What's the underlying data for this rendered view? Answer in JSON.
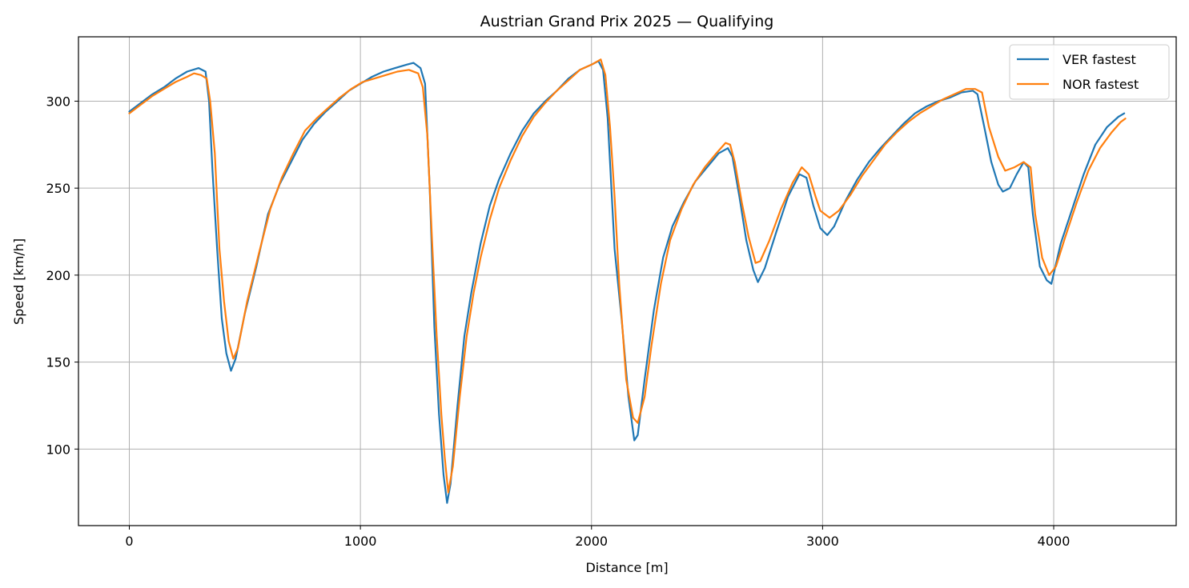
{
  "chart_data": {
    "type": "line",
    "title": "Austrian Grand Prix 2025 — Qualifying",
    "xlabel": "Distance [m]",
    "ylabel": "Speed [km/h]",
    "xlim": [
      -220,
      4530
    ],
    "ylim": [
      56,
      337
    ],
    "xticks": [
      0,
      1000,
      2000,
      3000,
      4000
    ],
    "yticks": [
      100,
      150,
      200,
      250,
      300
    ],
    "grid": true,
    "legend_position": "top-right",
    "series": [
      {
        "name": "VER fastest",
        "color": "#1f77b4",
        "points": [
          [
            0,
            294
          ],
          [
            50,
            299
          ],
          [
            100,
            304
          ],
          [
            150,
            308
          ],
          [
            200,
            313
          ],
          [
            250,
            317
          ],
          [
            300,
            319
          ],
          [
            330,
            317
          ],
          [
            345,
            300
          ],
          [
            360,
            260
          ],
          [
            380,
            215
          ],
          [
            400,
            175
          ],
          [
            420,
            155
          ],
          [
            440,
            145
          ],
          [
            460,
            152
          ],
          [
            500,
            178
          ],
          [
            550,
            205
          ],
          [
            600,
            235
          ],
          [
            650,
            252
          ],
          [
            700,
            265
          ],
          [
            750,
            278
          ],
          [
            800,
            287
          ],
          [
            850,
            294
          ],
          [
            900,
            300
          ],
          [
            950,
            306
          ],
          [
            1000,
            310
          ],
          [
            1050,
            314
          ],
          [
            1100,
            317
          ],
          [
            1150,
            319
          ],
          [
            1200,
            321
          ],
          [
            1230,
            322
          ],
          [
            1260,
            319
          ],
          [
            1280,
            310
          ],
          [
            1300,
            250
          ],
          [
            1320,
            170
          ],
          [
            1340,
            120
          ],
          [
            1360,
            85
          ],
          [
            1375,
            69
          ],
          [
            1390,
            80
          ],
          [
            1420,
            125
          ],
          [
            1450,
            165
          ],
          [
            1480,
            190
          ],
          [
            1520,
            218
          ],
          [
            1560,
            240
          ],
          [
            1600,
            255
          ],
          [
            1650,
            270
          ],
          [
            1700,
            283
          ],
          [
            1750,
            293
          ],
          [
            1800,
            300
          ],
          [
            1850,
            306
          ],
          [
            1900,
            313
          ],
          [
            1950,
            318
          ],
          [
            2000,
            321
          ],
          [
            2030,
            323
          ],
          [
            2050,
            318
          ],
          [
            2070,
            290
          ],
          [
            2100,
            215
          ],
          [
            2130,
            175
          ],
          [
            2160,
            130
          ],
          [
            2185,
            105
          ],
          [
            2200,
            108
          ],
          [
            2230,
            140
          ],
          [
            2270,
            180
          ],
          [
            2310,
            210
          ],
          [
            2350,
            228
          ],
          [
            2400,
            242
          ],
          [
            2450,
            254
          ],
          [
            2500,
            262
          ],
          [
            2550,
            270
          ],
          [
            2590,
            273
          ],
          [
            2610,
            268
          ],
          [
            2640,
            245
          ],
          [
            2670,
            220
          ],
          [
            2700,
            203
          ],
          [
            2720,
            196
          ],
          [
            2750,
            204
          ],
          [
            2800,
            225
          ],
          [
            2850,
            245
          ],
          [
            2900,
            258
          ],
          [
            2930,
            256
          ],
          [
            2960,
            240
          ],
          [
            2990,
            227
          ],
          [
            3020,
            223
          ],
          [
            3050,
            228
          ],
          [
            3100,
            243
          ],
          [
            3150,
            255
          ],
          [
            3200,
            265
          ],
          [
            3250,
            273
          ],
          [
            3300,
            280
          ],
          [
            3350,
            287
          ],
          [
            3400,
            293
          ],
          [
            3450,
            297
          ],
          [
            3500,
            300
          ],
          [
            3550,
            302
          ],
          [
            3600,
            305
          ],
          [
            3650,
            306
          ],
          [
            3670,
            304
          ],
          [
            3700,
            285
          ],
          [
            3730,
            265
          ],
          [
            3760,
            252
          ],
          [
            3780,
            248
          ],
          [
            3810,
            250
          ],
          [
            3840,
            258
          ],
          [
            3870,
            265
          ],
          [
            3890,
            262
          ],
          [
            3910,
            235
          ],
          [
            3940,
            205
          ],
          [
            3970,
            197
          ],
          [
            3990,
            195
          ],
          [
            4030,
            218
          ],
          [
            4080,
            238
          ],
          [
            4130,
            258
          ],
          [
            4180,
            275
          ],
          [
            4230,
            285
          ],
          [
            4280,
            291
          ],
          [
            4305,
            293
          ]
        ]
      },
      {
        "name": "NOR fastest",
        "color": "#ff7f0e",
        "points": [
          [
            0,
            293
          ],
          [
            50,
            298
          ],
          [
            100,
            303
          ],
          [
            150,
            307
          ],
          [
            200,
            311
          ],
          [
            250,
            314
          ],
          [
            280,
            316
          ],
          [
            310,
            315
          ],
          [
            335,
            313
          ],
          [
            350,
            300
          ],
          [
            370,
            270
          ],
          [
            390,
            215
          ],
          [
            410,
            185
          ],
          [
            430,
            162
          ],
          [
            450,
            152
          ],
          [
            470,
            158
          ],
          [
            510,
            185
          ],
          [
            560,
            212
          ],
          [
            610,
            238
          ],
          [
            660,
            256
          ],
          [
            710,
            270
          ],
          [
            760,
            283
          ],
          [
            810,
            290
          ],
          [
            860,
            296
          ],
          [
            910,
            302
          ],
          [
            960,
            307
          ],
          [
            1010,
            311
          ],
          [
            1060,
            313
          ],
          [
            1110,
            315
          ],
          [
            1160,
            317
          ],
          [
            1210,
            318
          ],
          [
            1250,
            316
          ],
          [
            1270,
            308
          ],
          [
            1290,
            280
          ],
          [
            1310,
            220
          ],
          [
            1330,
            165
          ],
          [
            1350,
            120
          ],
          [
            1365,
            95
          ],
          [
            1380,
            75
          ],
          [
            1400,
            90
          ],
          [
            1430,
            130
          ],
          [
            1460,
            165
          ],
          [
            1490,
            190
          ],
          [
            1520,
            210
          ],
          [
            1560,
            232
          ],
          [
            1600,
            250
          ],
          [
            1650,
            266
          ],
          [
            1700,
            280
          ],
          [
            1750,
            291
          ],
          [
            1800,
            299
          ],
          [
            1850,
            306
          ],
          [
            1900,
            312
          ],
          [
            1950,
            318
          ],
          [
            2000,
            321
          ],
          [
            2040,
            324
          ],
          [
            2060,
            315
          ],
          [
            2080,
            285
          ],
          [
            2100,
            245
          ],
          [
            2120,
            195
          ],
          [
            2150,
            140
          ],
          [
            2180,
            118
          ],
          [
            2200,
            115
          ],
          [
            2230,
            130
          ],
          [
            2260,
            160
          ],
          [
            2300,
            195
          ],
          [
            2340,
            220
          ],
          [
            2390,
            238
          ],
          [
            2440,
            252
          ],
          [
            2490,
            262
          ],
          [
            2540,
            270
          ],
          [
            2580,
            276
          ],
          [
            2600,
            275
          ],
          [
            2620,
            265
          ],
          [
            2650,
            242
          ],
          [
            2680,
            222
          ],
          [
            2710,
            207
          ],
          [
            2730,
            208
          ],
          [
            2770,
            220
          ],
          [
            2820,
            238
          ],
          [
            2870,
            253
          ],
          [
            2910,
            262
          ],
          [
            2940,
            258
          ],
          [
            2970,
            245
          ],
          [
            2990,
            237
          ],
          [
            3030,
            233
          ],
          [
            3070,
            237
          ],
          [
            3120,
            246
          ],
          [
            3170,
            257
          ],
          [
            3220,
            266
          ],
          [
            3270,
            275
          ],
          [
            3320,
            282
          ],
          [
            3370,
            288
          ],
          [
            3420,
            293
          ],
          [
            3470,
            297
          ],
          [
            3520,
            301
          ],
          [
            3570,
            304
          ],
          [
            3620,
            307
          ],
          [
            3660,
            307
          ],
          [
            3690,
            305
          ],
          [
            3720,
            285
          ],
          [
            3760,
            268
          ],
          [
            3790,
            260
          ],
          [
            3830,
            262
          ],
          [
            3870,
            265
          ],
          [
            3900,
            262
          ],
          [
            3920,
            235
          ],
          [
            3950,
            210
          ],
          [
            3980,
            200
          ],
          [
            4010,
            205
          ],
          [
            4050,
            222
          ],
          [
            4100,
            242
          ],
          [
            4150,
            260
          ],
          [
            4200,
            273
          ],
          [
            4250,
            282
          ],
          [
            4290,
            288
          ],
          [
            4310,
            290
          ]
        ]
      }
    ]
  }
}
